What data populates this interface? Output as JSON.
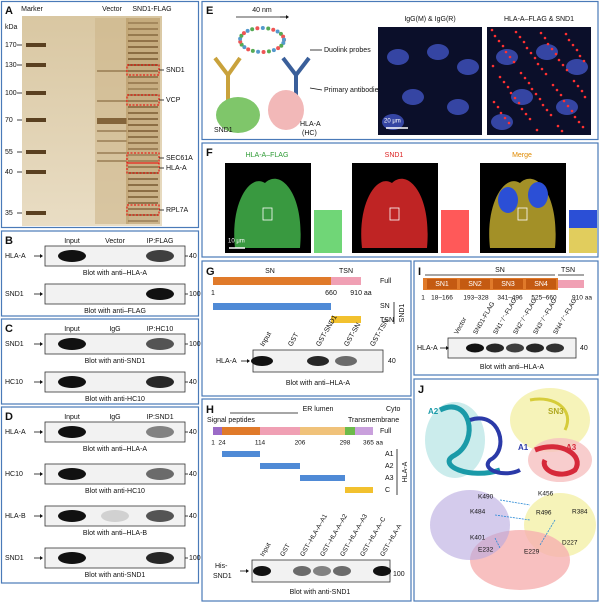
{
  "A": {
    "letter": "A",
    "lanes": [
      "Marker",
      "Vector",
      "SND1-FLAG"
    ],
    "unit": "kDa",
    "markers": [
      "170",
      "130",
      "100",
      "70",
      "55",
      "40",
      "35"
    ],
    "proteins": [
      "SND1",
      "VCP",
      "SEC61A",
      "HLA-A",
      "RPL7A"
    ]
  },
  "B": {
    "letter": "B",
    "lanes": [
      "Input",
      "Vector",
      "IP:FLAG"
    ],
    "rows": [
      {
        "target": "HLA-A",
        "size": "40",
        "blot": "Blot with anti–HLA-A"
      },
      {
        "target": "SND1",
        "size": "100",
        "blot": "Blot with anti–FLAG"
      }
    ]
  },
  "C": {
    "letter": "C",
    "lanes": [
      "Input",
      "IgG",
      "IP:HC10"
    ],
    "rows": [
      {
        "target": "SND1",
        "size": "100",
        "blot": "Blot with anti-SND1"
      },
      {
        "target": "HC10",
        "size": "40",
        "blot": "Blot with anti-HC10"
      }
    ]
  },
  "D": {
    "letter": "D",
    "lanes": [
      "Input",
      "IgG",
      "IP:SND1"
    ],
    "rows": [
      {
        "target": "HLA-A",
        "size": "40",
        "blot": "Blot with anti–HLA-A"
      },
      {
        "target": "HC10",
        "size": "40",
        "blot": "Blot with anti-HC10"
      },
      {
        "target": "HLA-B",
        "size": "40",
        "blot": "Blot with anti–HLA-B"
      },
      {
        "target": "SND1",
        "size": "100",
        "blot": "Blot with anti-SND1"
      }
    ]
  },
  "E": {
    "letter": "E",
    "scale": "40 nm",
    "labels": [
      "Duolink probes",
      "Primary antibodies"
    ],
    "proteins": [
      "SND1",
      "HLA-A",
      "(HC)"
    ],
    "images": [
      "IgG(M) & IgG(R)",
      "HLA-A–FLAG & SND1"
    ],
    "scalebar": "20 μm"
  },
  "F": {
    "letter": "F",
    "channels": [
      "HLA-A–FLAG",
      "SND1",
      "Merge"
    ],
    "scalebar": "10 μm"
  },
  "G": {
    "letter": "G",
    "domains": [
      "SN",
      "TSN"
    ],
    "positions": [
      "1",
      "660",
      "910 aa"
    ],
    "constructs": [
      "Full",
      "SN",
      "TSN"
    ],
    "protein": "SND1",
    "lanes": [
      "Input",
      "GST",
      "GST-SND1",
      "GST-SN",
      "GST-TSN"
    ],
    "target": "HLA-A",
    "size": "40",
    "blot": "Blot with anti–HLA-A"
  },
  "H": {
    "letter": "H",
    "regions": [
      "Signal peptides",
      "ER lumen",
      "Transmembrane",
      "Cyto"
    ],
    "positions": [
      "1",
      "24",
      "114",
      "206",
      "298",
      "365 aa"
    ],
    "constructs": [
      "Full",
      "A1",
      "A2",
      "A3",
      "C"
    ],
    "protein": "HLA-A",
    "lanes": [
      "Input",
      "GST",
      "GST–HLA-A–A1",
      "GST–HLA-A–A2",
      "GST–HLA-A–A3",
      "GST–HLA-A–C",
      "GST–HLA-A"
    ],
    "target": [
      "His-",
      "SND1"
    ],
    "size": "100",
    "blot": "Blot with anti-SND1"
  },
  "I": {
    "letter": "I",
    "domains": [
      "SN",
      "TSN"
    ],
    "subdomains": [
      "SN1",
      "SN2",
      "SN3",
      "SN4"
    ],
    "positions": [
      "1",
      "18–166",
      "193–328",
      "341–496",
      "525–660",
      "910 aa"
    ],
    "lanes": [
      "Vector",
      "SND1-FLAG",
      "SN1⁻/⁻-FLAG",
      "SN2⁻/⁻-FLAG",
      "SN3⁻/⁻-FLAG",
      "SN4⁻/⁻-FLAG"
    ],
    "target": "HLA-A",
    "size": "40",
    "blot": "Blot with anti–HLA-A"
  },
  "J": {
    "letter": "J",
    "chains": [
      "A2",
      "SN3",
      "A1",
      "A3"
    ],
    "residues": [
      "K490",
      "K456",
      "K484",
      "R384",
      "R496",
      "K401",
      "D227",
      "E232",
      "E229"
    ]
  }
}
